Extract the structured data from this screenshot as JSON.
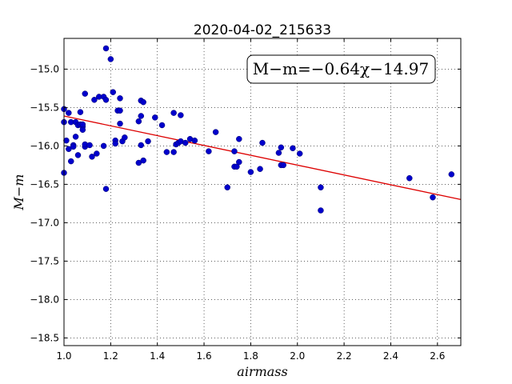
{
  "chart_data": {
    "type": "scatter",
    "title": "2020-04-02_215633",
    "xlabel": "airmass",
    "ylabel": "M−m",
    "xlim": [
      1.0,
      2.7
    ],
    "ylim": [
      -18.6,
      -14.6
    ],
    "y_inverted": false,
    "grid": true,
    "grid_style": "dotted",
    "xticks": [
      1.0,
      1.2,
      1.4,
      1.6,
      1.8,
      2.0,
      2.2,
      2.4,
      2.6
    ],
    "xtick_labels": [
      "1.0",
      "1.2",
      "1.4",
      "1.6",
      "1.8",
      "2.0",
      "2.2",
      "2.4",
      "2.6"
    ],
    "yticks": [
      -15.0,
      -15.5,
      -16.0,
      -16.5,
      -17.0,
      -17.5,
      -18.0,
      -18.5
    ],
    "ytick_labels": [
      "−15.0",
      "−15.5",
      "−16.0",
      "−16.5",
      "−17.0",
      "−17.5",
      "−18.0",
      "−18.5"
    ],
    "annotation": "M−m=−0.64χ−14.97",
    "point_color": "#0000cc",
    "line_color": "#dd0000",
    "fit": {
      "slope": -0.64,
      "intercept": -14.97
    },
    "x": [
      1.0,
      1.0,
      1.0,
      1.01,
      1.02,
      1.02,
      1.03,
      1.03,
      1.04,
      1.04,
      1.05,
      1.05,
      1.06,
      1.06,
      1.07,
      1.07,
      1.08,
      1.08,
      1.08,
      1.09,
      1.09,
      1.09,
      1.11,
      1.12,
      1.13,
      1.14,
      1.15,
      1.17,
      1.17,
      1.18,
      1.18,
      1.18,
      1.2,
      1.21,
      1.22,
      1.22,
      1.23,
      1.24,
      1.24,
      1.24,
      1.25,
      1.26,
      1.32,
      1.32,
      1.33,
      1.33,
      1.33,
      1.34,
      1.34,
      1.36,
      1.39,
      1.42,
      1.44,
      1.47,
      1.47,
      1.48,
      1.49,
      1.5,
      1.5,
      1.52,
      1.54,
      1.56,
      1.62,
      1.65,
      1.7,
      1.73,
      1.73,
      1.74,
      1.75,
      1.75,
      1.8,
      1.84,
      1.85,
      1.92,
      1.93,
      1.93,
      1.94,
      1.98,
      2.01,
      2.1,
      2.1,
      2.48,
      2.58,
      2.66
    ],
    "y": [
      -15.69,
      -15.52,
      -16.35,
      -15.93,
      -15.57,
      -16.04,
      -16.2,
      -15.69,
      -15.99,
      -16.01,
      -15.88,
      -15.69,
      -15.73,
      -16.12,
      -15.72,
      -15.56,
      -15.75,
      -15.79,
      -15.72,
      -15.32,
      -16.01,
      -15.98,
      -15.99,
      -16.14,
      -15.4,
      -16.1,
      -15.36,
      -16.0,
      -15.36,
      -16.56,
      -14.73,
      -15.4,
      -14.87,
      -15.3,
      -15.93,
      -15.97,
      -15.54,
      -15.54,
      -15.71,
      -15.38,
      -15.94,
      -15.89,
      -16.22,
      -15.68,
      -15.61,
      -15.99,
      -15.41,
      -16.19,
      -15.43,
      -15.94,
      -15.63,
      -15.73,
      -16.08,
      -15.57,
      -16.08,
      -15.98,
      -15.96,
      -15.6,
      -15.94,
      -15.96,
      -15.91,
      -15.93,
      -16.07,
      -15.82,
      -16.54,
      -16.27,
      -16.07,
      -16.27,
      -15.91,
      -16.21,
      -16.34,
      -16.3,
      -15.96,
      -16.09,
      -16.25,
      -16.02,
      -16.25,
      -16.03,
      -16.1,
      -16.84,
      -16.54,
      -16.42,
      -16.67,
      -16.37
    ]
  }
}
